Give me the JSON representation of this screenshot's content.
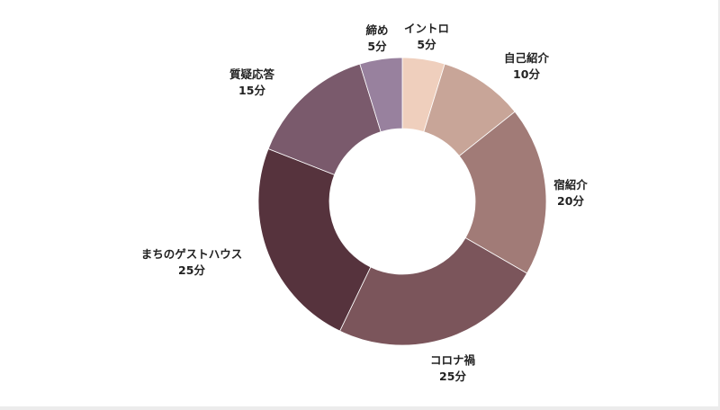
{
  "chart_data": {
    "type": "pie",
    "donut": true,
    "start_angle_deg": 0,
    "direction": "clockwise",
    "slices": [
      {
        "label": "イントロ",
        "value_label": "5分",
        "value": 5,
        "color": "#efcfbd"
      },
      {
        "label": "自己紹介",
        "value_label": "10分",
        "value": 10,
        "color": "#c8a598"
      },
      {
        "label": "宿紹介",
        "value_label": "20分",
        "value": 20,
        "color": "#a17b77"
      },
      {
        "label": "コロナ禍",
        "value_label": "25分",
        "value": 25,
        "color": "#7b555b"
      },
      {
        "label": "まちのゲストハウス",
        "value_label": "25分",
        "value": 25,
        "color": "#56333d"
      },
      {
        "label": "質疑応答",
        "value_label": "15分",
        "value": 15,
        "color": "#7a5a6c"
      },
      {
        "label": "締め",
        "value_label": "5分",
        "value": 5,
        "color": "#98819e"
      }
    ]
  }
}
